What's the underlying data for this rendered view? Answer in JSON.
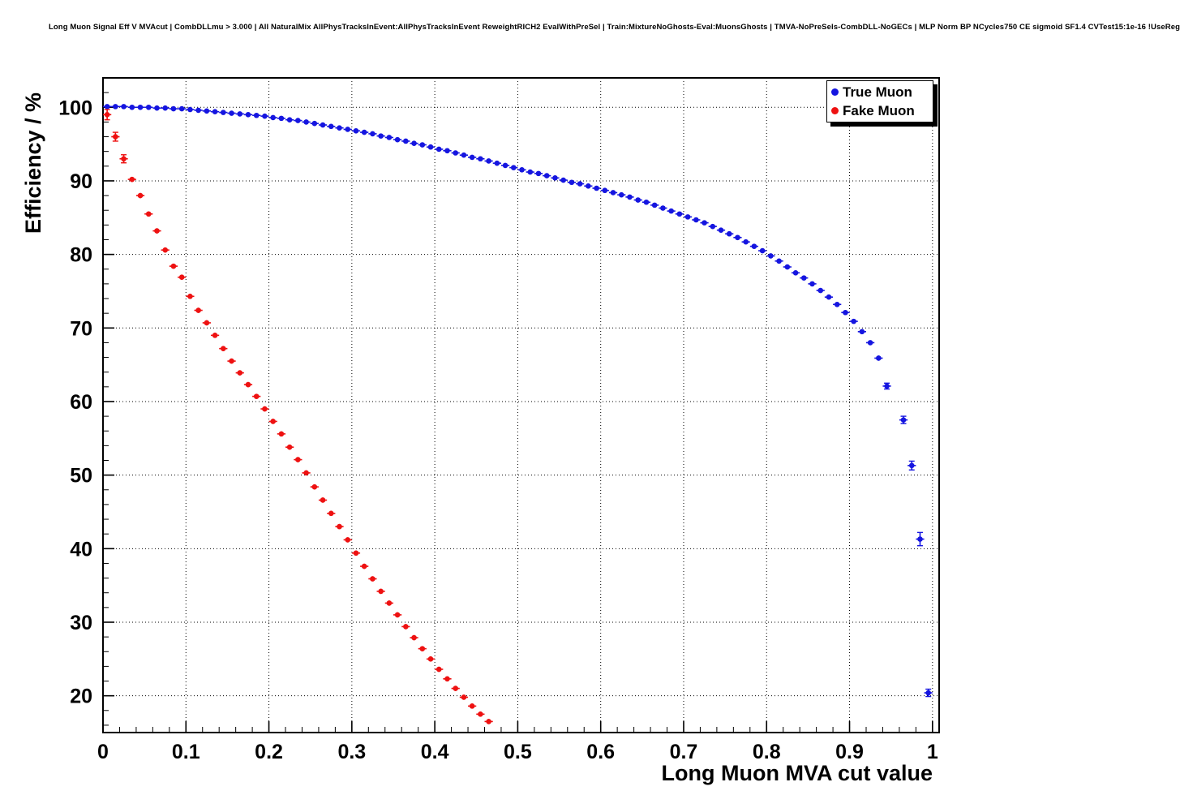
{
  "title": "Long Muon Signal Eff V MVAcut | CombDLLmu > 3.000 | All NaturalMix AllPhysTracksInEvent:AllPhysTracksInEvent ReweightRICH2 EvalWithPreSel | Train:MixtureNoGhosts-Eval:MuonsGhosts | TMVA-NoPreSels-CombDLL-NoGECs | MLP Norm BP NCycles750 CE sigmoid SF1.4 CVTest15:1e-16 !UseReg",
  "chart_data": {
    "type": "scatter",
    "title": "Long Muon Signal Eff V MVAcut",
    "xlabel": "Long Muon MVA cut value",
    "ylabel": "Efficiency / %",
    "xlim": [
      0,
      1.008
    ],
    "ylim": [
      15,
      104
    ],
    "grid": "dotted",
    "legend_position": "top-right",
    "x_ticks": {
      "values": [
        0,
        0.1,
        0.2,
        0.3,
        0.4,
        0.5,
        0.6,
        0.7,
        0.8,
        0.9,
        1.0
      ],
      "labels": [
        "0",
        "0.1",
        "0.2",
        "0.3",
        "0.4",
        "0.5",
        "0.6",
        "0.7",
        "0.8",
        "0.9",
        "1"
      ]
    },
    "y_ticks": {
      "values": [
        20,
        30,
        40,
        50,
        60,
        70,
        80,
        90,
        100
      ],
      "labels": [
        "20",
        "30",
        "40",
        "50",
        "60",
        "70",
        "80",
        "90",
        "100"
      ]
    },
    "x_minor_step": 0.02,
    "y_minor_step": 2,
    "series": [
      {
        "name": "True Muon",
        "color": "#1515e0",
        "marker": "circle",
        "xerr": 0.005,
        "yerr_default": 0.18,
        "yerr_overrides": {
          "92": 0.3,
          "93": 0.35,
          "94": 0.4,
          "95": 0.5,
          "96": 0.6,
          "97": 0.9,
          "98": 0.5
        },
        "x": [
          0.005,
          0.015,
          0.025,
          0.035,
          0.045,
          0.055,
          0.065,
          0.075,
          0.085,
          0.095,
          0.105,
          0.115,
          0.125,
          0.135,
          0.145,
          0.155,
          0.165,
          0.175,
          0.185,
          0.195,
          0.205,
          0.215,
          0.225,
          0.235,
          0.245,
          0.255,
          0.265,
          0.275,
          0.285,
          0.295,
          0.305,
          0.315,
          0.325,
          0.335,
          0.345,
          0.355,
          0.365,
          0.375,
          0.385,
          0.395,
          0.405,
          0.415,
          0.425,
          0.435,
          0.445,
          0.455,
          0.465,
          0.475,
          0.485,
          0.495,
          0.505,
          0.515,
          0.525,
          0.535,
          0.545,
          0.555,
          0.565,
          0.575,
          0.585,
          0.595,
          0.605,
          0.615,
          0.625,
          0.635,
          0.645,
          0.655,
          0.665,
          0.675,
          0.685,
          0.695,
          0.705,
          0.715,
          0.725,
          0.735,
          0.745,
          0.755,
          0.765,
          0.775,
          0.785,
          0.795,
          0.805,
          0.815,
          0.825,
          0.835,
          0.845,
          0.855,
          0.865,
          0.875,
          0.885,
          0.895,
          0.905,
          0.915,
          0.925,
          0.935,
          0.945,
          0.965,
          0.975,
          0.985,
          0.995
        ],
        "y": [
          100.1,
          100.1,
          100.1,
          100.0,
          100.0,
          100.0,
          99.9,
          99.9,
          99.8,
          99.8,
          99.7,
          99.6,
          99.5,
          99.4,
          99.3,
          99.2,
          99.1,
          99.0,
          98.9,
          98.8,
          98.6,
          98.5,
          98.3,
          98.2,
          98.0,
          97.8,
          97.6,
          97.4,
          97.2,
          97.0,
          96.8,
          96.6,
          96.4,
          96.1,
          95.9,
          95.6,
          95.4,
          95.1,
          94.9,
          94.6,
          94.3,
          94.1,
          93.8,
          93.5,
          93.2,
          93.0,
          92.7,
          92.4,
          92.1,
          91.8,
          91.5,
          91.2,
          91.0,
          90.7,
          90.4,
          90.1,
          89.8,
          89.6,
          89.3,
          89.0,
          88.7,
          88.4,
          88.1,
          87.8,
          87.4,
          87.1,
          86.7,
          86.3,
          85.9,
          85.5,
          85.1,
          84.7,
          84.3,
          83.8,
          83.3,
          82.8,
          82.3,
          81.7,
          81.1,
          80.5,
          79.8,
          79.1,
          78.3,
          77.5,
          76.8,
          76.0,
          75.1,
          74.2,
          73.2,
          72.1,
          70.9,
          69.5,
          68.0,
          65.9,
          62.1,
          57.5,
          51.3,
          41.3,
          20.4
        ]
      },
      {
        "name": "Fake Muon",
        "color": "#ee1111",
        "marker": "circle",
        "xerr": 0.005,
        "yerr_default": 0.35,
        "yerr_overrides": {
          "0": 0.7,
          "1": 0.6,
          "2": 0.55
        },
        "x": [
          0.005,
          0.015,
          0.025,
          0.035,
          0.045,
          0.055,
          0.065,
          0.075,
          0.085,
          0.095,
          0.105,
          0.115,
          0.125,
          0.135,
          0.145,
          0.155,
          0.165,
          0.175,
          0.185,
          0.195,
          0.205,
          0.215,
          0.225,
          0.235,
          0.245,
          0.255,
          0.265,
          0.275,
          0.285,
          0.295,
          0.305,
          0.315,
          0.325,
          0.335,
          0.345,
          0.355,
          0.365,
          0.375,
          0.385,
          0.395,
          0.405,
          0.415,
          0.425,
          0.435,
          0.445,
          0.455,
          0.465
        ],
        "y": [
          99.0,
          96.0,
          93.0,
          90.2,
          88.0,
          85.5,
          83.2,
          80.6,
          78.4,
          76.9,
          74.3,
          72.4,
          70.7,
          69.0,
          67.2,
          65.5,
          63.9,
          62.3,
          60.7,
          59.0,
          57.3,
          55.6,
          53.8,
          52.1,
          50.3,
          48.4,
          46.6,
          44.8,
          43.0,
          41.2,
          39.4,
          37.6,
          35.9,
          34.2,
          32.6,
          31.0,
          29.4,
          27.9,
          26.4,
          25.0,
          23.6,
          22.3,
          21.0,
          19.8,
          18.6,
          17.5,
          16.5
        ]
      }
    ]
  }
}
